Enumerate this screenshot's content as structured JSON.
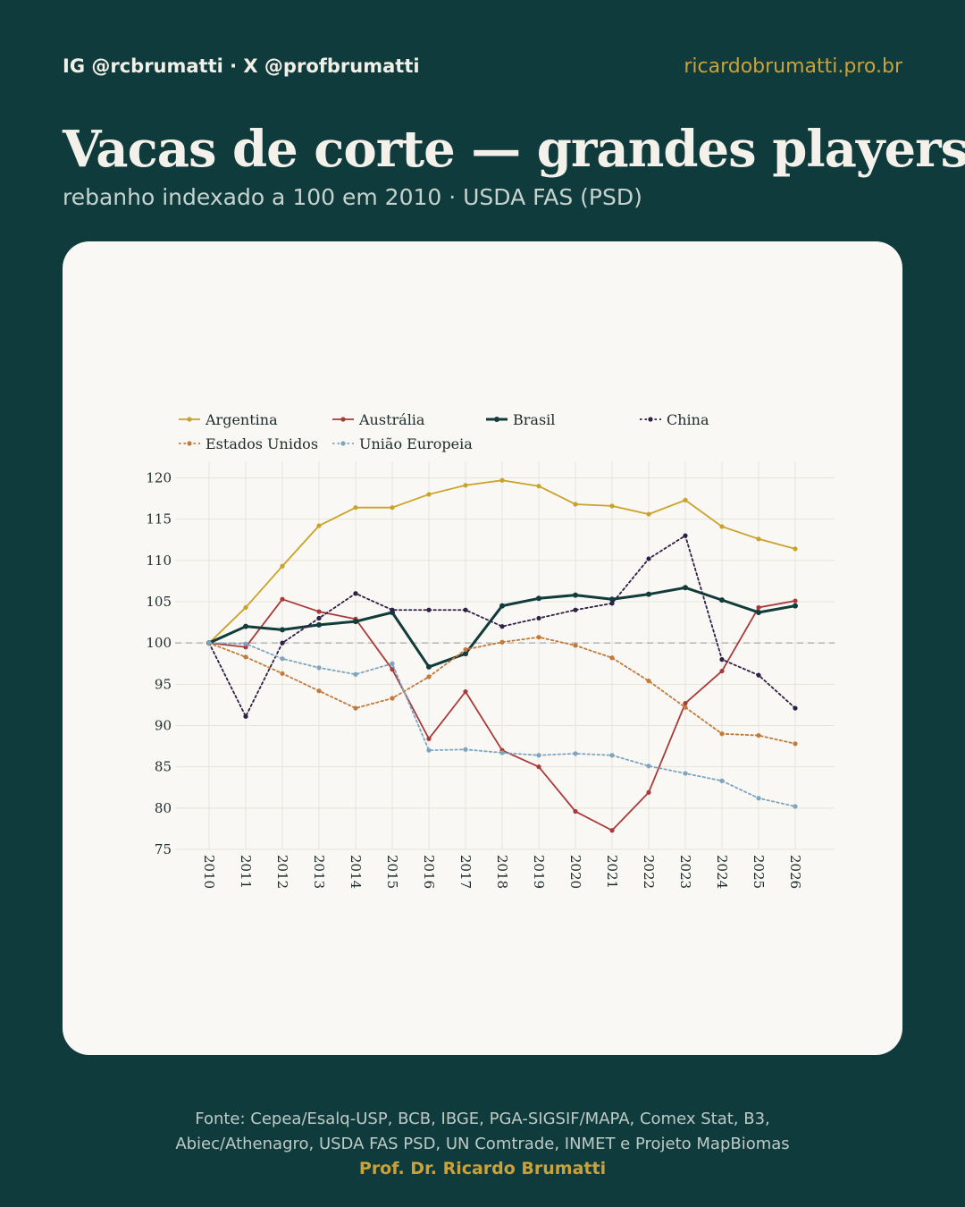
{
  "header": {
    "handles": "IG @rcbrumatti · X @profbrumatti",
    "site": "ricardobrumatti.pro.br"
  },
  "title": "Vacas de corte — grandes players",
  "subtitle": "rebanho indexado a 100 em 2010 · USDA FAS (PSD)",
  "footer": {
    "source_line1": "Fonte: Cepea/Esalq-USP, BCB, IBGE, PGA-SIGSIF/MAPA, Comex Stat, B3,",
    "source_line2": "Abiec/Athenagro, USDA FAS PSD, UN Comtrade, INMET e Projeto MapBiomas",
    "author": "Prof. Dr. Ricardo Brumatti"
  },
  "chart_data": {
    "type": "line",
    "x": [
      "2010",
      "2011",
      "2012",
      "2013",
      "2014",
      "2015",
      "2016",
      "2017",
      "2018",
      "2019",
      "2020",
      "2021",
      "2022",
      "2023",
      "2024",
      "2025",
      "2026"
    ],
    "ylim": [
      75,
      122
    ],
    "yticks": [
      75,
      80,
      85,
      90,
      95,
      100,
      105,
      110,
      115,
      120
    ],
    "reference_line": 100,
    "grid": true,
    "legend_position": "top",
    "series": [
      {
        "name": "Argentina",
        "color": "#c9a227",
        "style": "solid",
        "values": [
          100,
          104.3,
          109.3,
          114.2,
          116.4,
          116.4,
          118.0,
          119.1,
          119.7,
          119.0,
          116.8,
          116.6,
          115.6,
          117.3,
          114.1,
          112.6,
          111.4
        ]
      },
      {
        "name": "Austrália",
        "color": "#a83a3a",
        "style": "solid",
        "values": [
          100,
          99.5,
          105.3,
          103.8,
          102.9,
          96.8,
          88.4,
          94.1,
          87.0,
          85.0,
          79.6,
          77.3,
          81.9,
          92.7,
          96.6,
          104.3,
          105.1
        ]
      },
      {
        "name": "Brasil",
        "color": "#113c3a",
        "style": "solid-bold",
        "values": [
          100,
          102.0,
          101.6,
          102.2,
          102.6,
          103.7,
          97.1,
          98.7,
          104.5,
          105.4,
          105.8,
          105.3,
          105.9,
          106.7,
          105.2,
          103.7,
          104.5
        ]
      },
      {
        "name": "China",
        "color": "#2e2047",
        "style": "dotted",
        "values": [
          100,
          91.1,
          100.0,
          103.0,
          106.0,
          104.0,
          104.0,
          104.0,
          102.0,
          103.0,
          104.0,
          104.8,
          110.2,
          113.0,
          98.0,
          96.1,
          92.1
        ]
      },
      {
        "name": "Estados Unidos",
        "color": "#c27a3a",
        "style": "dotted",
        "values": [
          100,
          98.3,
          96.3,
          94.2,
          92.1,
          93.3,
          95.9,
          99.2,
          100.1,
          100.7,
          99.7,
          98.2,
          95.4,
          92.2,
          89.0,
          88.8,
          87.8
        ]
      },
      {
        "name": "União Europeia",
        "color": "#7ea5bf",
        "style": "dotted",
        "values": [
          100,
          99.9,
          98.1,
          97.0,
          96.2,
          97.5,
          87.0,
          87.1,
          86.7,
          86.4,
          86.6,
          86.4,
          85.1,
          84.2,
          83.3,
          81.2,
          80.2
        ]
      }
    ]
  }
}
